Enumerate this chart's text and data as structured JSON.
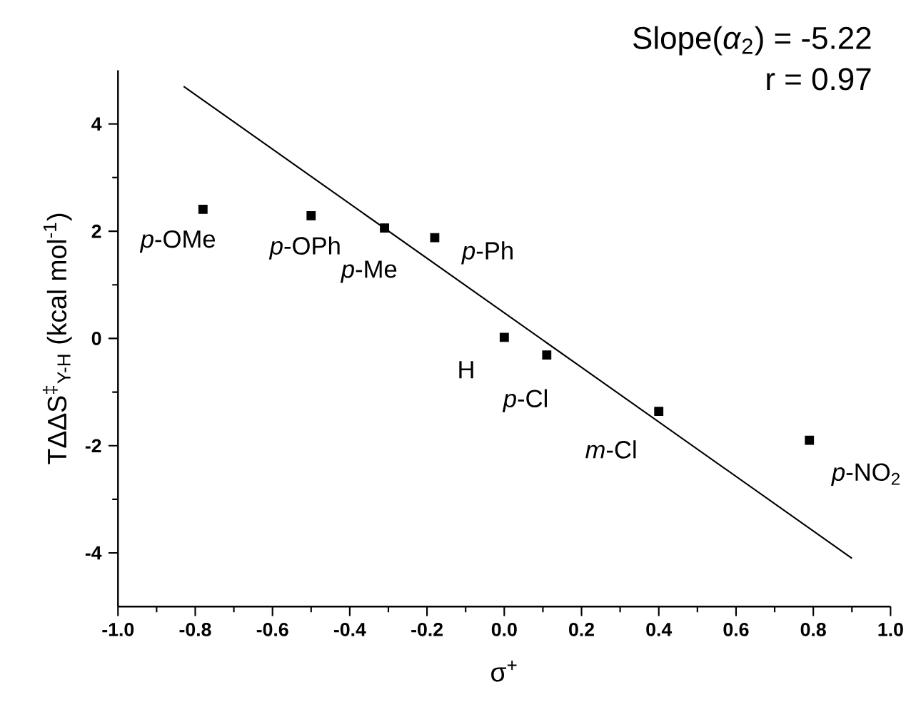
{
  "chart_data": {
    "type": "scatter",
    "xlabel": "σ$^{+}$",
    "ylabel": "TΔΔS$^{‡}$$_{Y-H}$ (kcal mol$^{-1}$)",
    "xlim": [
      -1.0,
      1.0
    ],
    "ylim": [
      -5,
      5
    ],
    "xticks": [
      {
        "value": -1.0,
        "label": "-1.0"
      },
      {
        "value": -0.8,
        "label": "-0.8"
      },
      {
        "value": -0.6,
        "label": "-0.6"
      },
      {
        "value": -0.4,
        "label": "-0.4"
      },
      {
        "value": -0.2,
        "label": "-0.2"
      },
      {
        "value": 0.0,
        "label": "0.0"
      },
      {
        "value": 0.2,
        "label": "0.2"
      },
      {
        "value": 0.4,
        "label": "0.4"
      },
      {
        "value": 0.6,
        "label": "0.6"
      },
      {
        "value": 0.8,
        "label": "0.8"
      },
      {
        "value": 1.0,
        "label": "1.0"
      }
    ],
    "yticks": [
      -4,
      -2,
      0,
      2,
      4
    ],
    "grid": false,
    "marker": "square",
    "series": [
      {
        "color": "#000000",
        "x": [
          -0.78,
          -0.5,
          -0.31,
          -0.18,
          0.0,
          0.11,
          0.4,
          0.79
        ],
        "values": [
          2.41,
          2.29,
          2.06,
          1.88,
          0.02,
          -0.31,
          -1.36,
          -1.9
        ]
      },
      {
        "type": "line",
        "color": "#000000",
        "marker": "none",
        "x": [
          -0.83,
          0.9
        ],
        "values": [
          4.7,
          -4.1
        ]
      }
    ],
    "annotations": [
      {
        "text": "*p*-OMe",
        "x": -0.78,
        "y": 2.41
      },
      {
        "text": "*p*-OPh",
        "x": -0.5,
        "y": 2.29
      },
      {
        "text": "*p*-Me",
        "x": -0.31,
        "y": 2.06
      },
      {
        "text": "*p*-Ph",
        "x": -0.18,
        "y": 1.88
      },
      {
        "text": "H",
        "x": 0.0,
        "y": 0.02
      },
      {
        "text": "*p*-Cl",
        "x": 0.11,
        "y": -0.31
      },
      {
        "text": "*m*-Cl",
        "x": 0.4,
        "y": -1.36
      },
      {
        "text": "*p*-NO$_{2}$",
        "x": 0.79,
        "y": -1.9
      },
      "Slope(*α*$_{2}$) = -5.22",
      "r =  0.97"
    ]
  }
}
